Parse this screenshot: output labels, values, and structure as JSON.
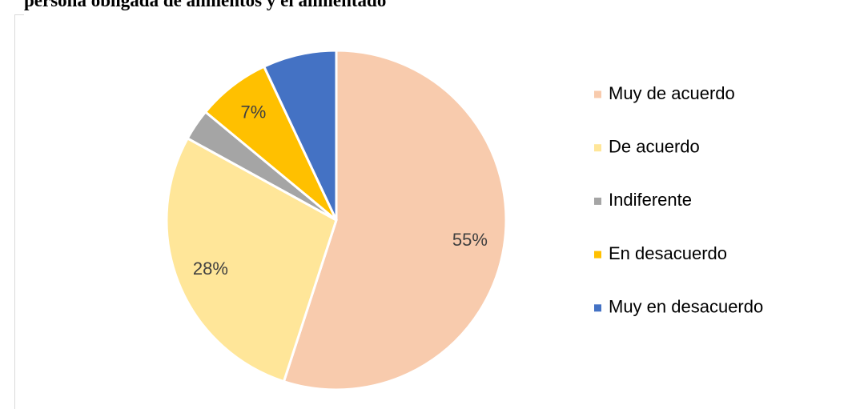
{
  "chart_data": {
    "type": "pie",
    "title": "persona obligada de alimentos y el alimentado",
    "categories": [
      "Muy de acuerdo",
      "De acuerdo",
      "Indiferente",
      "En desacuerdo",
      "Muy en desacuerdo"
    ],
    "values": [
      55,
      28,
      3,
      7,
      7
    ],
    "value_labels": [
      "55%",
      "28%",
      null,
      "7%",
      null
    ],
    "colors": [
      "#f8cbad",
      "#ffe699",
      "#a5a5a5",
      "#ffc000",
      "#4472c4"
    ],
    "legend": "right"
  }
}
